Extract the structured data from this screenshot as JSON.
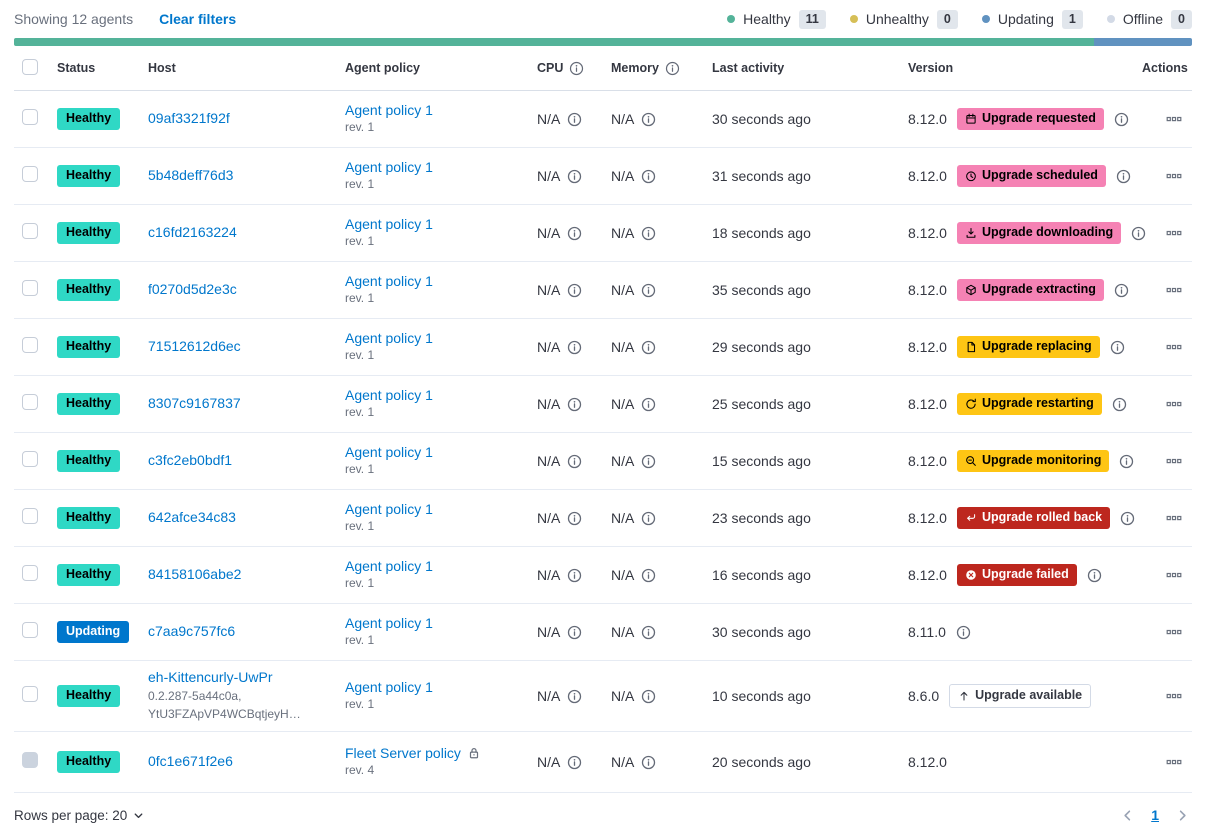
{
  "toolbar": {
    "showing": "Showing 12 agents",
    "clear_filters": "Clear filters",
    "legend": [
      {
        "label": "Healthy",
        "count": "11",
        "color": "#54B399"
      },
      {
        "label": "Unhealthy",
        "count": "0",
        "color": "#D6BF57"
      },
      {
        "label": "Updating",
        "count": "1",
        "color": "#6092C0"
      },
      {
        "label": "Offline",
        "count": "0",
        "color": "#D3DAE6"
      }
    ]
  },
  "progress_bar": {
    "segments": [
      {
        "status": "healthy",
        "color": "#54B399",
        "fraction": 0.9167
      },
      {
        "status": "updating",
        "color": "#6092C0",
        "fraction": 0.0833
      }
    ]
  },
  "palette": {
    "healthy_badge": "#2FD8C5",
    "updating_badge": "#0077CC",
    "upgrade_pink": "#F582B4",
    "upgrade_warning": "#FEC514",
    "upgrade_danger": "#BD271E",
    "link": "#0077CC"
  },
  "table": {
    "headers": {
      "status": "Status",
      "host": "Host",
      "policy": "Agent policy",
      "cpu": "CPU",
      "memory": "Memory",
      "last_activity": "Last activity",
      "version": "Version",
      "actions": "Actions"
    },
    "rows": [
      {
        "status": {
          "label": "Healthy",
          "variant": "healthy"
        },
        "host": {
          "name": "09af3321f92f",
          "sub": []
        },
        "policy": {
          "name": "Agent policy 1",
          "revision": "rev. 1",
          "locked": false
        },
        "cpu": "N/A",
        "memory": "N/A",
        "last_activity": "30 seconds ago",
        "version": "8.12.0",
        "upgrade": {
          "label": "Upgrade requested",
          "variant": "pink",
          "icon": "calendar-icon",
          "info": true
        },
        "version_info": false,
        "checkbox_disabled": false
      },
      {
        "status": {
          "label": "Healthy",
          "variant": "healthy"
        },
        "host": {
          "name": "5b48deff76d3",
          "sub": []
        },
        "policy": {
          "name": "Agent policy 1",
          "revision": "rev. 1",
          "locked": false
        },
        "cpu": "N/A",
        "memory": "N/A",
        "last_activity": "31 seconds ago",
        "version": "8.12.0",
        "upgrade": {
          "label": "Upgrade scheduled",
          "variant": "pink",
          "icon": "clock-icon",
          "info": true
        },
        "version_info": false,
        "checkbox_disabled": false
      },
      {
        "status": {
          "label": "Healthy",
          "variant": "healthy"
        },
        "host": {
          "name": "c16fd2163224",
          "sub": []
        },
        "policy": {
          "name": "Agent policy 1",
          "revision": "rev. 1",
          "locked": false
        },
        "cpu": "N/A",
        "memory": "N/A",
        "last_activity": "18 seconds ago",
        "version": "8.12.0",
        "upgrade": {
          "label": "Upgrade downloading",
          "variant": "pink",
          "icon": "download-icon",
          "info": true
        },
        "version_info": false,
        "checkbox_disabled": false
      },
      {
        "status": {
          "label": "Healthy",
          "variant": "healthy"
        },
        "host": {
          "name": "f0270d5d2e3c",
          "sub": []
        },
        "policy": {
          "name": "Agent policy 1",
          "revision": "rev. 1",
          "locked": false
        },
        "cpu": "N/A",
        "memory": "N/A",
        "last_activity": "35 seconds ago",
        "version": "8.12.0",
        "upgrade": {
          "label": "Upgrade extracting",
          "variant": "pink",
          "icon": "package-icon",
          "info": true
        },
        "version_info": false,
        "checkbox_disabled": false
      },
      {
        "status": {
          "label": "Healthy",
          "variant": "healthy"
        },
        "host": {
          "name": "71512612d6ec",
          "sub": []
        },
        "policy": {
          "name": "Agent policy 1",
          "revision": "rev. 1",
          "locked": false
        },
        "cpu": "N/A",
        "memory": "N/A",
        "last_activity": "29 seconds ago",
        "version": "8.12.0",
        "upgrade": {
          "label": "Upgrade replacing",
          "variant": "warning",
          "icon": "document-icon",
          "info": true
        },
        "version_info": false,
        "checkbox_disabled": false
      },
      {
        "status": {
          "label": "Healthy",
          "variant": "healthy"
        },
        "host": {
          "name": "8307c9167837",
          "sub": []
        },
        "policy": {
          "name": "Agent policy 1",
          "revision": "rev. 1",
          "locked": false
        },
        "cpu": "N/A",
        "memory": "N/A",
        "last_activity": "25 seconds ago",
        "version": "8.12.0",
        "upgrade": {
          "label": "Upgrade restarting",
          "variant": "warning",
          "icon": "refresh-icon",
          "info": true
        },
        "version_info": false,
        "checkbox_disabled": false
      },
      {
        "status": {
          "label": "Healthy",
          "variant": "healthy"
        },
        "host": {
          "name": "c3fc2eb0bdf1",
          "sub": []
        },
        "policy": {
          "name": "Agent policy 1",
          "revision": "rev. 1",
          "locked": false
        },
        "cpu": "N/A",
        "memory": "N/A",
        "last_activity": "15 seconds ago",
        "version": "8.12.0",
        "upgrade": {
          "label": "Upgrade monitoring",
          "variant": "warning",
          "icon": "inspect-icon",
          "info": true
        },
        "version_info": false,
        "checkbox_disabled": false
      },
      {
        "status": {
          "label": "Healthy",
          "variant": "healthy"
        },
        "host": {
          "name": "642afce34c83",
          "sub": []
        },
        "policy": {
          "name": "Agent policy 1",
          "revision": "rev. 1",
          "locked": false
        },
        "cpu": "N/A",
        "memory": "N/A",
        "last_activity": "23 seconds ago",
        "version": "8.12.0",
        "upgrade": {
          "label": "Upgrade rolled back",
          "variant": "danger",
          "icon": "return-icon",
          "info": true
        },
        "version_info": false,
        "checkbox_disabled": false
      },
      {
        "status": {
          "label": "Healthy",
          "variant": "healthy"
        },
        "host": {
          "name": "84158106abe2",
          "sub": []
        },
        "policy": {
          "name": "Agent policy 1",
          "revision": "rev. 1",
          "locked": false
        },
        "cpu": "N/A",
        "memory": "N/A",
        "last_activity": "16 seconds ago",
        "version": "8.12.0",
        "upgrade": {
          "label": "Upgrade failed",
          "variant": "danger",
          "icon": "cross-in-circle-icon",
          "info": true
        },
        "version_info": false,
        "checkbox_disabled": false
      },
      {
        "status": {
          "label": "Updating",
          "variant": "updating"
        },
        "host": {
          "name": "c7aa9c757fc6",
          "sub": []
        },
        "policy": {
          "name": "Agent policy 1",
          "revision": "rev. 1",
          "locked": false
        },
        "cpu": "N/A",
        "memory": "N/A",
        "last_activity": "30 seconds ago",
        "version": "8.11.0",
        "upgrade": null,
        "version_info": true,
        "checkbox_disabled": false
      },
      {
        "status": {
          "label": "Healthy",
          "variant": "healthy"
        },
        "host": {
          "name": "eh-Kittencurly-UwPr",
          "sub": [
            "0.2.287-5a44c0a,",
            "YtU3FZApVP4WCBqtjeyH…"
          ]
        },
        "policy": {
          "name": "Agent policy 1",
          "revision": "rev. 1",
          "locked": false
        },
        "cpu": "N/A",
        "memory": "N/A",
        "last_activity": "10 seconds ago",
        "version": "8.6.0",
        "upgrade": {
          "label": "Upgrade available",
          "variant": "hollow",
          "icon": "arrow-up-icon",
          "info": false
        },
        "version_info": false,
        "checkbox_disabled": false
      },
      {
        "status": {
          "label": "Healthy",
          "variant": "healthy"
        },
        "host": {
          "name": "0fc1e671f2e6",
          "sub": []
        },
        "policy": {
          "name": "Fleet Server policy",
          "revision": "rev. 4",
          "locked": true
        },
        "cpu": "N/A",
        "memory": "N/A",
        "last_activity": "20 seconds ago",
        "version": "8.12.0",
        "upgrade": null,
        "version_info": false,
        "checkbox_disabled": true
      }
    ]
  },
  "footer": {
    "rows_per_page": "Rows per page: 20",
    "page": "1"
  }
}
